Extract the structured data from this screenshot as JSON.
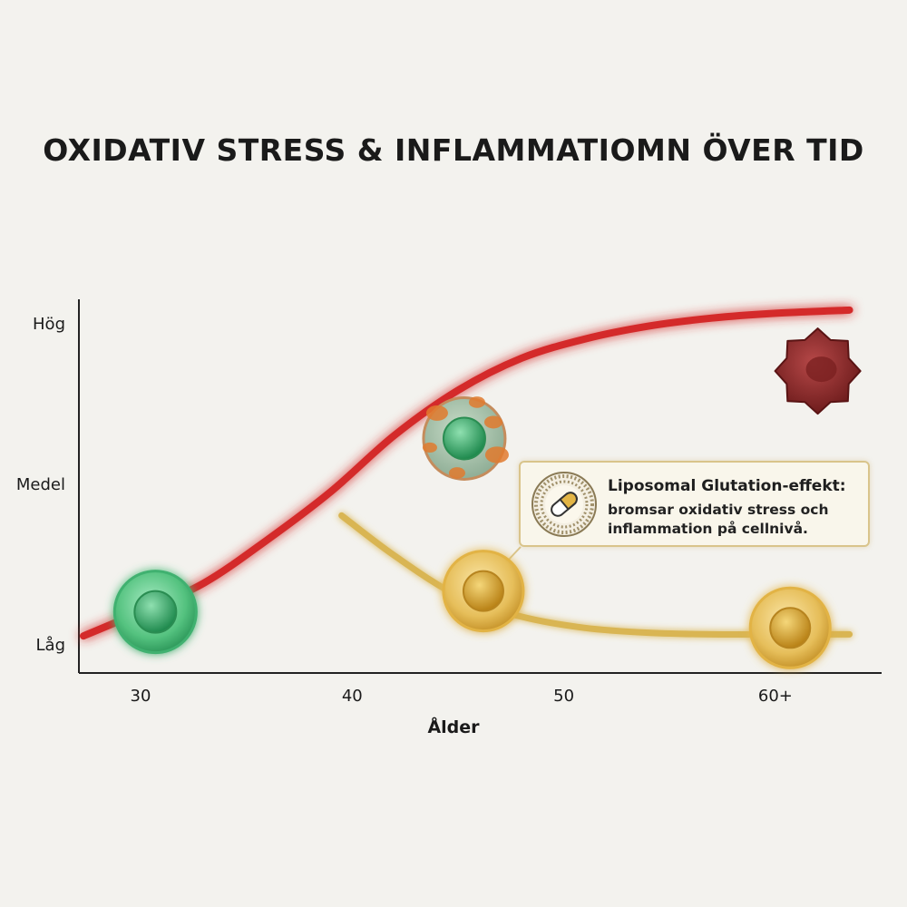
{
  "title": "OXIDATIV STRESS & INFLAMMATIOMN ÖVER TID",
  "chart_data": {
    "type": "line",
    "xlabel": "Ålder",
    "x_ticks": [
      "30",
      "40",
      "50",
      "60+"
    ],
    "y_ticks": [
      "Låg",
      "Medel",
      "Hög"
    ],
    "y_scale": "categorical levels: Låg=0, Medel=1, Hög=2",
    "xlim": [
      27,
      64
    ],
    "ylim": [
      -0.2,
      2.2
    ],
    "grid": false,
    "series": [
      {
        "color": "#d42a2a",
        "x": [
          27.3,
          30,
          33,
          36,
          39,
          42,
          45,
          48,
          51,
          54,
          57,
          60,
          63.5
        ],
        "y": [
          0.05,
          0.2,
          0.38,
          0.65,
          0.95,
          1.3,
          1.58,
          1.78,
          1.9,
          1.98,
          2.03,
          2.06,
          2.08
        ]
      },
      {
        "color": "#d9b553",
        "x": [
          39.5,
          42,
          45,
          48,
          51,
          54,
          57,
          60,
          63.5
        ],
        "y": [
          0.8,
          0.55,
          0.3,
          0.17,
          0.1,
          0.07,
          0.06,
          0.06,
          0.06
        ]
      }
    ],
    "cell_markers": [
      {
        "x": 30.7,
        "y": 0.2,
        "kind": "healthy-cell",
        "color": "#5fc98a"
      },
      {
        "x": 45.3,
        "y": 1.28,
        "kind": "stressed-cell",
        "color": "#e07a2e"
      },
      {
        "x": 62,
        "y": 1.7,
        "kind": "damaged-cell",
        "color": "#8e2a2a"
      },
      {
        "x": 46.2,
        "y": 0.33,
        "kind": "protected-cell",
        "color": "#e3b546"
      },
      {
        "x": 60.7,
        "y": 0.1,
        "kind": "protected-cell",
        "color": "#e3b546"
      }
    ],
    "annotation": {
      "title": "Liposomal Glutation-effekt:",
      "text": "bromsar oxidativ stress och inflammation på cellnivå."
    }
  }
}
